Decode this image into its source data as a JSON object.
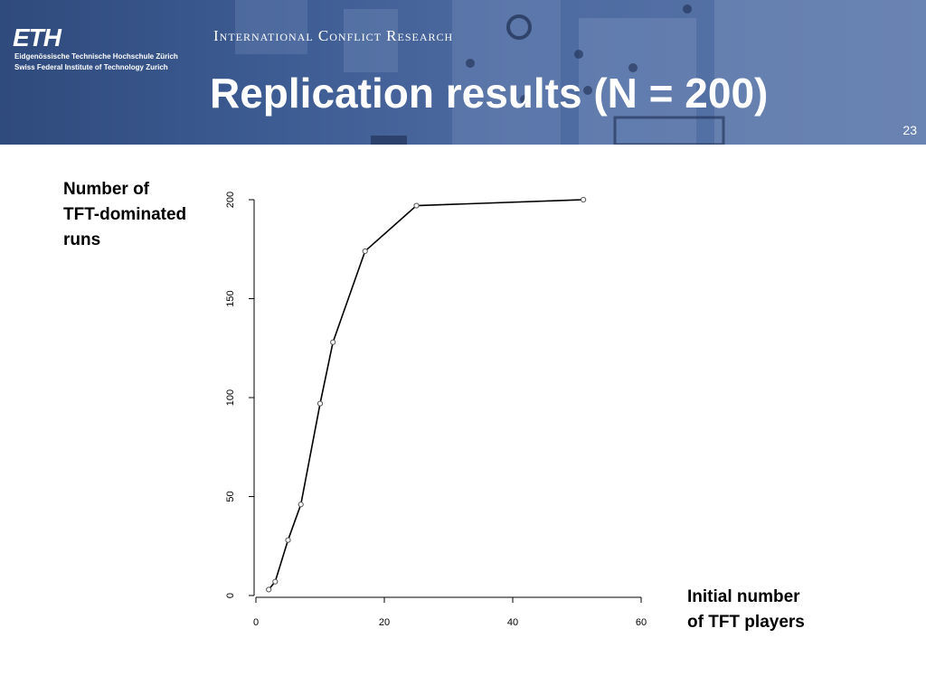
{
  "header": {
    "logo": "ETH",
    "institution_line1": "Eidgenössische Technische Hochschule Zürich",
    "institution_line2": "Swiss Federal Institute of Technology Zurich",
    "group_name": "International Conflict Research",
    "title": "Replication results (N = 200)",
    "page_number": "23"
  },
  "labels": {
    "y_lines": [
      "Number of",
      "TFT-dominated",
      "runs"
    ],
    "x_lines": [
      "Initial number",
      "of TFT players"
    ]
  },
  "chart_data": {
    "type": "line",
    "x": [
      2,
      3,
      5,
      7,
      10,
      12,
      17,
      25,
      51
    ],
    "series": [
      {
        "values": [
          3,
          7,
          28,
          46,
          97,
          128,
          174,
          197,
          200
        ]
      }
    ],
    "xlim": [
      0,
      60
    ],
    "ylim": [
      0,
      200
    ],
    "xticks": [
      0,
      20,
      40,
      60
    ],
    "yticks": [
      0,
      50,
      100,
      150,
      200
    ],
    "markers": "open-circle",
    "grid": false
  }
}
